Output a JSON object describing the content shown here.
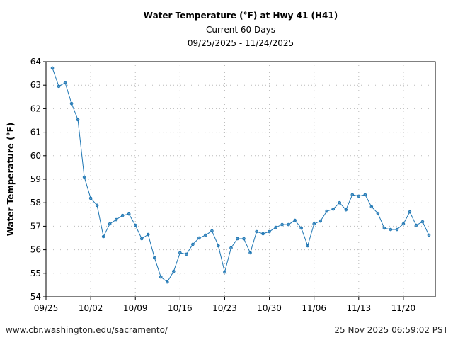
{
  "chart_data": {
    "type": "line",
    "title": "Water Temperature (°F) at Hwy 41 (H41)",
    "subtitle": "Current 60 Days",
    "date_range": "09/25/2025 - 11/24/2025",
    "xlabel": "",
    "ylabel": "Water Temperature (°F)",
    "ylim": [
      54,
      64
    ],
    "xlim": [
      "2025-09-25",
      "2025-10-26T00:00",
      "2025-11-25"
    ],
    "yticks": [
      54,
      55,
      56,
      57,
      58,
      59,
      60,
      61,
      62,
      63,
      64
    ],
    "xticks": [
      "09/25",
      "10/02",
      "10/09",
      "10/16",
      "10/23",
      "10/30",
      "11/06",
      "11/13",
      "11/20"
    ],
    "grid": true,
    "color": "#1f77b4",
    "series": [
      {
        "x_start": "2025-09-26",
        "interval": "daily",
        "values": [
          63.73,
          62.95,
          63.1,
          62.22,
          61.53,
          59.09,
          58.19,
          57.89,
          56.56,
          57.1,
          57.28,
          57.46,
          57.52,
          57.04,
          56.47,
          56.65,
          55.66,
          54.84,
          54.63,
          55.08,
          55.87,
          55.81,
          56.23,
          56.5,
          56.62,
          56.8,
          56.17,
          55.05,
          56.08,
          56.47,
          56.47,
          55.87,
          56.77,
          56.68,
          56.77,
          56.95,
          57.07,
          57.07,
          57.25,
          56.92,
          56.17,
          57.1,
          57.22,
          57.64,
          57.73,
          58.0,
          57.7,
          58.34,
          58.28,
          58.34,
          57.83,
          57.55,
          56.92,
          56.86,
          56.86,
          57.1,
          57.61,
          57.04,
          57.19,
          56.62
        ]
      }
    ]
  },
  "footer": {
    "url": "www.cbr.washington.edu/sacramento/",
    "timestamp": "25 Nov 2025 06:59:02 PST"
  }
}
